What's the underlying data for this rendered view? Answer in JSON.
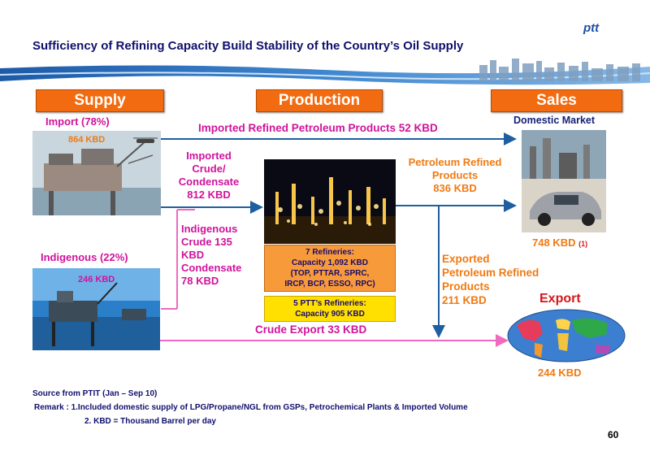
{
  "title": "Sufficiency of Refining Capacity Build Stability of the Country’s Oil Supply",
  "logo": "ptt",
  "headers": {
    "supply": "Supply",
    "production": "Production",
    "sales": "Sales"
  },
  "supply": {
    "import_label": "Import (78%)",
    "import_value": "864 KBD",
    "indigenous_label": "Indigenous (22%)",
    "indigenous_value": "246 KBD"
  },
  "flows": {
    "imported_refined": "Imported Refined Petroleum Products 52 KBD",
    "imported_crude": [
      "Imported",
      "Crude/",
      "Condensate",
      "812 KBD"
    ],
    "indigenous_crude": [
      "Indigenous",
      "Crude 135",
      "KBD",
      "Condensate",
      "78 KBD"
    ],
    "petroleum_refined": [
      "Petroleum Refined",
      "Products",
      "836 KBD"
    ],
    "exported_refined": [
      "Exported",
      "Petroleum Refined",
      "Products",
      "211 KBD"
    ],
    "crude_export": "Crude Export 33 KBD"
  },
  "production": {
    "refineries": [
      "7 Refineries:",
      "Capacity  1,092 KBD",
      "(TOP, PTTAR, SPRC,",
      "IRCP, BCP, ESSO, RPC)"
    ],
    "ptt_refineries": [
      "5 PTT’s Refineries:",
      "Capacity  905 KBD"
    ]
  },
  "sales": {
    "domestic_label": "Domestic Market",
    "domestic_value": "748 KBD",
    "domestic_note": "(1)",
    "export_label": "Export",
    "export_value": "244 KBD"
  },
  "footer": {
    "source": "Source from PTIT (Jan – Sep 10)",
    "remark1": "Remark :  1.Included domestic supply of LPG/Propane/NGL from GSPs, Petrochemical Plants & Imported Volume",
    "remark2": "2. KBD =  Thousand Barrel per day",
    "page": "60"
  },
  "colors": {
    "header": "#f26b10",
    "pink": "#d0139a",
    "orange": "#f07a12",
    "navy": "#16227a",
    "arrow_blue": "#1d5fa0",
    "arrow_pink": "#f06ac0"
  }
}
